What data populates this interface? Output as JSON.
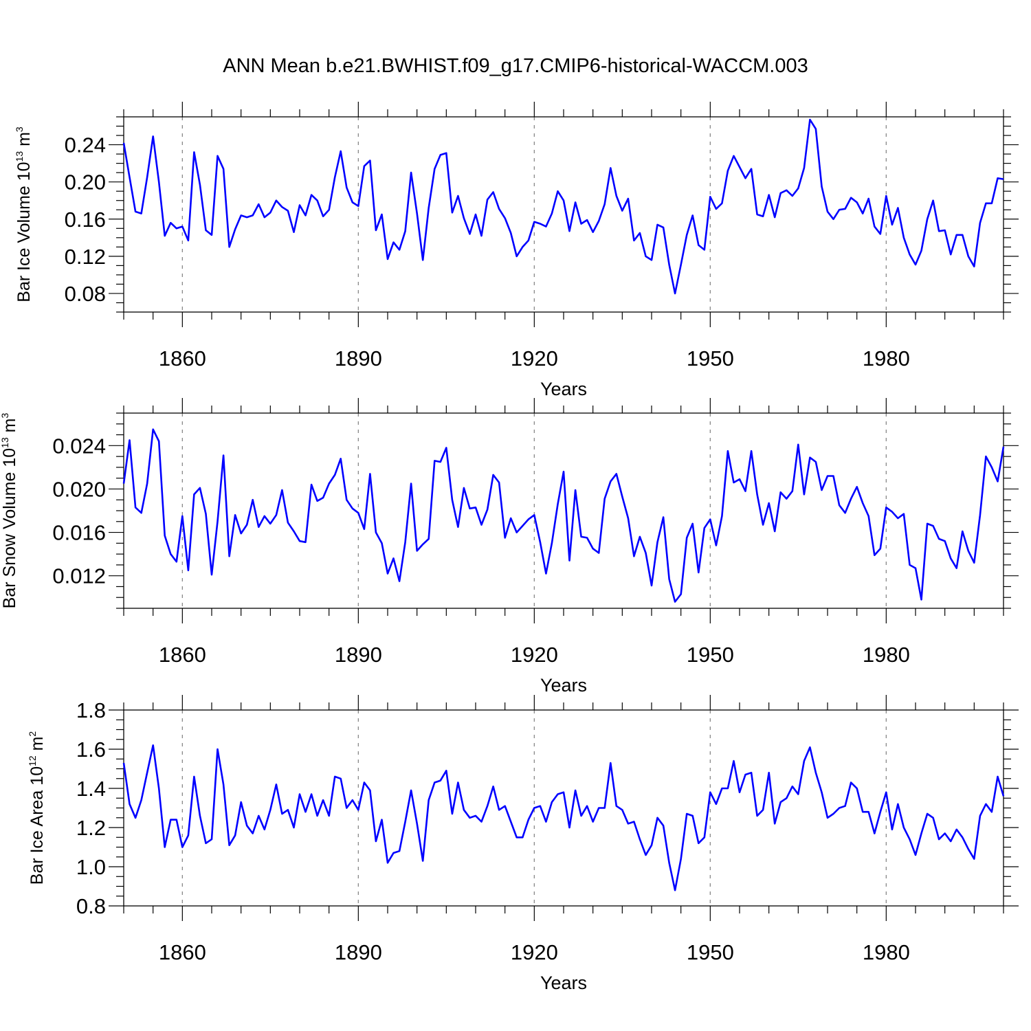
{
  "figure": {
    "title": "ANN Mean b.e21.BWHIST.f09_g17.CMIP6-historical-WACCM.003"
  },
  "colors": {
    "series": "#0000ff",
    "axes": "#000000",
    "refline": "#888888"
  },
  "chart_data": [
    {
      "type": "line",
      "name": "bar-ice-volume",
      "title": "",
      "xlabel": "Years",
      "ylabel": {
        "base": "Bar Ice Volume 10",
        "exp": "13",
        "unit": " m",
        "unit_exp": "3"
      },
      "xlim": [
        1850,
        2000
      ],
      "ylim": [
        0.06,
        0.27
      ],
      "xticks": [
        1860,
        1890,
        1920,
        1950,
        1980
      ],
      "yticks": [
        0.08,
        0.12,
        0.16,
        0.2,
        0.24
      ],
      "ytick_labels": [
        "0.08",
        "0.12",
        "0.16",
        "0.20",
        "0.24"
      ],
      "reference_lines_x": [
        1860,
        1890,
        1920,
        1950,
        1980
      ],
      "x_start": 1850,
      "values": [
        0.242,
        0.205,
        0.168,
        0.166,
        0.205,
        0.249,
        0.2,
        0.142,
        0.156,
        0.15,
        0.152,
        0.137,
        0.232,
        0.197,
        0.148,
        0.143,
        0.228,
        0.214,
        0.13,
        0.149,
        0.164,
        0.162,
        0.164,
        0.176,
        0.162,
        0.167,
        0.18,
        0.173,
        0.169,
        0.146,
        0.175,
        0.164,
        0.186,
        0.18,
        0.163,
        0.17,
        0.205,
        0.233,
        0.194,
        0.178,
        0.174,
        0.217,
        0.223,
        0.148,
        0.165,
        0.117,
        0.135,
        0.127,
        0.147,
        0.21,
        0.166,
        0.116,
        0.172,
        0.214,
        0.229,
        0.231,
        0.167,
        0.185,
        0.161,
        0.144,
        0.165,
        0.142,
        0.181,
        0.189,
        0.171,
        0.161,
        0.145,
        0.12,
        0.13,
        0.137,
        0.157,
        0.155,
        0.152,
        0.166,
        0.19,
        0.18,
        0.147,
        0.178,
        0.155,
        0.159,
        0.146,
        0.158,
        0.176,
        0.215,
        0.185,
        0.169,
        0.182,
        0.137,
        0.145,
        0.12,
        0.116,
        0.154,
        0.151,
        0.111,
        0.08,
        0.111,
        0.143,
        0.164,
        0.132,
        0.127,
        0.184,
        0.171,
        0.177,
        0.212,
        0.228,
        0.216,
        0.204,
        0.214,
        0.165,
        0.163,
        0.186,
        0.162,
        0.188,
        0.191,
        0.185,
        0.193,
        0.215,
        0.267,
        0.257,
        0.195,
        0.168,
        0.16,
        0.17,
        0.171,
        0.183,
        0.178,
        0.166,
        0.182,
        0.152,
        0.144,
        0.185,
        0.154,
        0.172,
        0.14,
        0.122,
        0.111,
        0.126,
        0.16,
        0.18,
        0.147,
        0.148,
        0.122,
        0.143,
        0.143,
        0.12,
        0.109,
        0.156,
        0.177,
        0.177,
        0.204,
        0.203
      ]
    },
    {
      "type": "line",
      "name": "bar-snow-volume",
      "title": "",
      "xlabel": "Years",
      "ylabel": {
        "base": "Bar Snow Volume 10",
        "exp": "13",
        "unit": " m",
        "unit_exp": "3"
      },
      "xlim": [
        1850,
        2000
      ],
      "ylim": [
        0.009,
        0.027
      ],
      "xticks": [
        1860,
        1890,
        1920,
        1950,
        1980
      ],
      "yticks": [
        0.012,
        0.016,
        0.02,
        0.024
      ],
      "ytick_labels": [
        "0.012",
        "0.016",
        "0.020",
        "0.024"
      ],
      "reference_lines_x": [
        1860,
        1890,
        1920,
        1950,
        1980
      ],
      "x_start": 1850,
      "values": [
        0.0205,
        0.0245,
        0.0183,
        0.0178,
        0.0205,
        0.0255,
        0.0244,
        0.0157,
        0.014,
        0.0133,
        0.0175,
        0.0125,
        0.0195,
        0.0201,
        0.0177,
        0.0121,
        0.017,
        0.0231,
        0.0138,
        0.0176,
        0.0159,
        0.0167,
        0.019,
        0.0165,
        0.0175,
        0.0168,
        0.0176,
        0.0199,
        0.0169,
        0.0161,
        0.0152,
        0.0151,
        0.0204,
        0.0189,
        0.0192,
        0.0205,
        0.0213,
        0.0228,
        0.019,
        0.0182,
        0.0178,
        0.0163,
        0.0214,
        0.016,
        0.015,
        0.0122,
        0.0136,
        0.0115,
        0.0151,
        0.0205,
        0.0143,
        0.0149,
        0.0154,
        0.0226,
        0.0225,
        0.0238,
        0.019,
        0.0165,
        0.0201,
        0.0182,
        0.0183,
        0.0167,
        0.0181,
        0.0213,
        0.0206,
        0.0155,
        0.0173,
        0.016,
        0.0166,
        0.0172,
        0.0176,
        0.0151,
        0.0122,
        0.015,
        0.0186,
        0.0216,
        0.0134,
        0.0199,
        0.0156,
        0.0155,
        0.0145,
        0.0141,
        0.0191,
        0.0207,
        0.0214,
        0.0193,
        0.0173,
        0.0138,
        0.0156,
        0.0141,
        0.0111,
        0.0151,
        0.0174,
        0.0117,
        0.0096,
        0.0103,
        0.0155,
        0.0168,
        0.0123,
        0.0164,
        0.0172,
        0.0148,
        0.0175,
        0.0235,
        0.0206,
        0.0209,
        0.0198,
        0.0235,
        0.0195,
        0.0167,
        0.0187,
        0.0161,
        0.0197,
        0.0191,
        0.0198,
        0.0241,
        0.0195,
        0.0229,
        0.0225,
        0.0199,
        0.0212,
        0.0212,
        0.0185,
        0.0178,
        0.0191,
        0.0202,
        0.0187,
        0.0175,
        0.0139,
        0.0145,
        0.0183,
        0.0179,
        0.0173,
        0.0177,
        0.013,
        0.0127,
        0.0098,
        0.0168,
        0.0166,
        0.0154,
        0.0152,
        0.0136,
        0.0127,
        0.0161,
        0.0143,
        0.0132,
        0.0176,
        0.023,
        0.022,
        0.0207,
        0.0239
      ]
    },
    {
      "type": "line",
      "name": "bar-ice-area",
      "title": "",
      "xlabel": "Years",
      "ylabel": {
        "base": "Bar Ice Area 10",
        "exp": "12",
        "unit": " m",
        "unit_exp": "2"
      },
      "xlim": [
        1850,
        2000
      ],
      "ylim": [
        0.8,
        1.8
      ],
      "xticks": [
        1860,
        1890,
        1920,
        1950,
        1980
      ],
      "yticks": [
        0.8,
        1.0,
        1.2,
        1.4,
        1.6,
        1.8
      ],
      "ytick_labels": [
        "0.8",
        "1.0",
        "1.2",
        "1.4",
        "1.6",
        "1.8"
      ],
      "reference_lines_x": [
        1860,
        1890,
        1920,
        1950,
        1980
      ],
      "x_start": 1850,
      "values": [
        1.53,
        1.32,
        1.25,
        1.34,
        1.48,
        1.62,
        1.4,
        1.1,
        1.24,
        1.24,
        1.1,
        1.16,
        1.46,
        1.26,
        1.12,
        1.14,
        1.6,
        1.42,
        1.11,
        1.16,
        1.33,
        1.21,
        1.17,
        1.26,
        1.19,
        1.29,
        1.42,
        1.27,
        1.29,
        1.2,
        1.37,
        1.28,
        1.37,
        1.26,
        1.34,
        1.26,
        1.46,
        1.45,
        1.3,
        1.34,
        1.29,
        1.43,
        1.39,
        1.13,
        1.24,
        1.02,
        1.07,
        1.08,
        1.23,
        1.39,
        1.22,
        1.03,
        1.34,
        1.43,
        1.44,
        1.49,
        1.27,
        1.43,
        1.29,
        1.25,
        1.26,
        1.23,
        1.31,
        1.41,
        1.29,
        1.31,
        1.23,
        1.15,
        1.15,
        1.24,
        1.3,
        1.31,
        1.23,
        1.33,
        1.37,
        1.38,
        1.2,
        1.39,
        1.26,
        1.31,
        1.23,
        1.3,
        1.3,
        1.53,
        1.31,
        1.29,
        1.22,
        1.23,
        1.14,
        1.06,
        1.11,
        1.25,
        1.21,
        1.02,
        0.88,
        1.04,
        1.27,
        1.26,
        1.12,
        1.15,
        1.38,
        1.32,
        1.4,
        1.4,
        1.54,
        1.38,
        1.47,
        1.48,
        1.26,
        1.29,
        1.48,
        1.22,
        1.33,
        1.35,
        1.41,
        1.37,
        1.54,
        1.61,
        1.48,
        1.38,
        1.25,
        1.27,
        1.3,
        1.31,
        1.43,
        1.4,
        1.28,
        1.28,
        1.17,
        1.28,
        1.38,
        1.19,
        1.32,
        1.2,
        1.14,
        1.06,
        1.17,
        1.27,
        1.25,
        1.14,
        1.17,
        1.13,
        1.19,
        1.15,
        1.09,
        1.04,
        1.26,
        1.32,
        1.28,
        1.46,
        1.36
      ]
    }
  ]
}
